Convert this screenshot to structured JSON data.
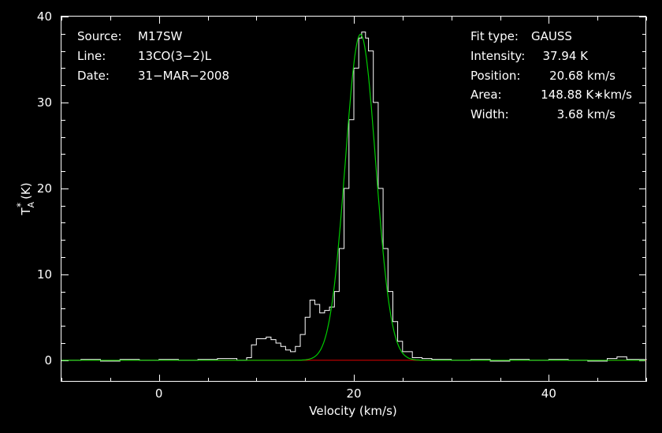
{
  "chart_data": {
    "type": "line",
    "xlabel": "Velocity (km/s)",
    "ylabel_main": "T",
    "ylabel_sub": "A",
    "ylabel_sup": "*",
    "ylabel_tail": "(K)",
    "xlim": [
      -10,
      50
    ],
    "ylim": [
      -2.5,
      40
    ],
    "x_ticks": [
      0,
      20,
      40
    ],
    "x_tick_labels": [
      "0",
      "20",
      "40"
    ],
    "y_ticks": [
      0,
      10,
      20,
      30,
      40
    ],
    "y_tick_labels": [
      "0",
      "10",
      "20",
      "30",
      "40"
    ],
    "info_left": [
      {
        "key": "Source:",
        "value": "M17SW"
      },
      {
        "key": "Line:",
        "value": "13CO(3−2)L"
      },
      {
        "key": "Date:",
        "value": "31−MAR−2008"
      }
    ],
    "info_right": [
      {
        "key": "Fit type:",
        "value": "GAUSS"
      },
      {
        "key": "Intensity:",
        "value": "37.94 K"
      },
      {
        "key": "Position:",
        "value": "20.68 km/s"
      },
      {
        "key": "Area:",
        "value": "148.88 K∗km/s"
      },
      {
        "key": "Width:",
        "value": "3.68 km/s"
      }
    ],
    "fit": {
      "amplitude": 37.94,
      "center": 20.68,
      "fwhm": 3.68
    },
    "colors": {
      "spectrum": "#ffffff",
      "fit": "#00cc00",
      "baseline": "#dd0000"
    },
    "series": [
      {
        "values": [
          [
            -10,
            0.0
          ],
          [
            -8,
            0.1
          ],
          [
            -6,
            -0.1
          ],
          [
            -4,
            0.1
          ],
          [
            -2,
            0.0
          ],
          [
            0,
            0.1
          ],
          [
            2,
            0.0
          ],
          [
            4,
            0.1
          ],
          [
            6,
            0.2
          ],
          [
            8,
            0.0
          ],
          [
            9,
            0.3
          ],
          [
            9.5,
            1.8
          ],
          [
            10,
            2.5
          ],
          [
            11,
            2.7
          ],
          [
            11.5,
            2.4
          ],
          [
            12,
            2.0
          ],
          [
            12.5,
            1.6
          ],
          [
            13,
            1.2
          ],
          [
            13.5,
            1.0
          ],
          [
            14,
            1.6
          ],
          [
            14.5,
            3.0
          ],
          [
            15,
            5.0
          ],
          [
            15.5,
            7.0
          ],
          [
            16,
            6.5
          ],
          [
            16.5,
            5.5
          ],
          [
            17,
            5.8
          ],
          [
            17.5,
            6.2
          ],
          [
            18,
            8.0
          ],
          [
            18.5,
            13.0
          ],
          [
            19,
            20.0
          ],
          [
            19.5,
            28.0
          ],
          [
            20,
            34.0
          ],
          [
            20.5,
            37.5
          ],
          [
            20.8,
            38.2
          ],
          [
            21.2,
            37.5
          ],
          [
            21.5,
            36.0
          ],
          [
            22,
            30.0
          ],
          [
            22.5,
            20.0
          ],
          [
            23,
            13.0
          ],
          [
            23.5,
            8.0
          ],
          [
            24,
            4.5
          ],
          [
            24.5,
            2.2
          ],
          [
            25,
            1.0
          ],
          [
            26,
            0.3
          ],
          [
            27,
            0.2
          ],
          [
            28,
            0.1
          ],
          [
            30,
            0.0
          ],
          [
            32,
            0.1
          ],
          [
            34,
            -0.1
          ],
          [
            36,
            0.1
          ],
          [
            38,
            0.0
          ],
          [
            40,
            0.1
          ],
          [
            42,
            0.0
          ],
          [
            44,
            -0.1
          ],
          [
            46,
            0.2
          ],
          [
            47,
            0.4
          ],
          [
            48,
            0.1
          ],
          [
            50,
            0.0
          ]
        ]
      }
    ]
  }
}
